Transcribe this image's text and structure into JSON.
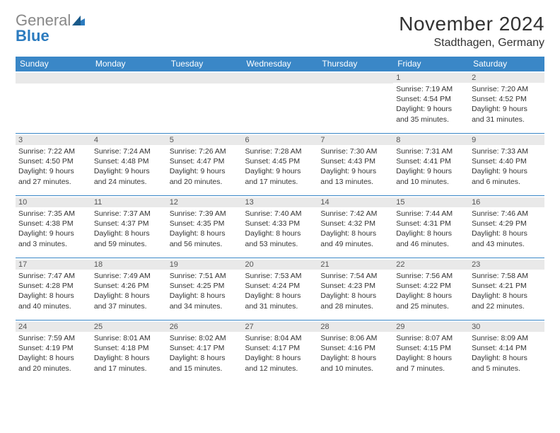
{
  "logo": {
    "gray": "General",
    "blue": "Blue"
  },
  "title": "November 2024",
  "location": "Stadthagen, Germany",
  "colors": {
    "header_bg": "#3a87c7",
    "header_text": "#ffffff",
    "daynum_bg": "#e9e9e9",
    "rule": "#3a87c7",
    "logo_gray": "#888888",
    "logo_blue": "#2b7bbf"
  },
  "day_names": [
    "Sunday",
    "Monday",
    "Tuesday",
    "Wednesday",
    "Thursday",
    "Friday",
    "Saturday"
  ],
  "weeks": [
    [
      null,
      null,
      null,
      null,
      null,
      {
        "n": "1",
        "sunrise": "Sunrise: 7:19 AM",
        "sunset": "Sunset: 4:54 PM",
        "daylight": "Daylight: 9 hours and 35 minutes."
      },
      {
        "n": "2",
        "sunrise": "Sunrise: 7:20 AM",
        "sunset": "Sunset: 4:52 PM",
        "daylight": "Daylight: 9 hours and 31 minutes."
      }
    ],
    [
      {
        "n": "3",
        "sunrise": "Sunrise: 7:22 AM",
        "sunset": "Sunset: 4:50 PM",
        "daylight": "Daylight: 9 hours and 27 minutes."
      },
      {
        "n": "4",
        "sunrise": "Sunrise: 7:24 AM",
        "sunset": "Sunset: 4:48 PM",
        "daylight": "Daylight: 9 hours and 24 minutes."
      },
      {
        "n": "5",
        "sunrise": "Sunrise: 7:26 AM",
        "sunset": "Sunset: 4:47 PM",
        "daylight": "Daylight: 9 hours and 20 minutes."
      },
      {
        "n": "6",
        "sunrise": "Sunrise: 7:28 AM",
        "sunset": "Sunset: 4:45 PM",
        "daylight": "Daylight: 9 hours and 17 minutes."
      },
      {
        "n": "7",
        "sunrise": "Sunrise: 7:30 AM",
        "sunset": "Sunset: 4:43 PM",
        "daylight": "Daylight: 9 hours and 13 minutes."
      },
      {
        "n": "8",
        "sunrise": "Sunrise: 7:31 AM",
        "sunset": "Sunset: 4:41 PM",
        "daylight": "Daylight: 9 hours and 10 minutes."
      },
      {
        "n": "9",
        "sunrise": "Sunrise: 7:33 AM",
        "sunset": "Sunset: 4:40 PM",
        "daylight": "Daylight: 9 hours and 6 minutes."
      }
    ],
    [
      {
        "n": "10",
        "sunrise": "Sunrise: 7:35 AM",
        "sunset": "Sunset: 4:38 PM",
        "daylight": "Daylight: 9 hours and 3 minutes."
      },
      {
        "n": "11",
        "sunrise": "Sunrise: 7:37 AM",
        "sunset": "Sunset: 4:37 PM",
        "daylight": "Daylight: 8 hours and 59 minutes."
      },
      {
        "n": "12",
        "sunrise": "Sunrise: 7:39 AM",
        "sunset": "Sunset: 4:35 PM",
        "daylight": "Daylight: 8 hours and 56 minutes."
      },
      {
        "n": "13",
        "sunrise": "Sunrise: 7:40 AM",
        "sunset": "Sunset: 4:33 PM",
        "daylight": "Daylight: 8 hours and 53 minutes."
      },
      {
        "n": "14",
        "sunrise": "Sunrise: 7:42 AM",
        "sunset": "Sunset: 4:32 PM",
        "daylight": "Daylight: 8 hours and 49 minutes."
      },
      {
        "n": "15",
        "sunrise": "Sunrise: 7:44 AM",
        "sunset": "Sunset: 4:31 PM",
        "daylight": "Daylight: 8 hours and 46 minutes."
      },
      {
        "n": "16",
        "sunrise": "Sunrise: 7:46 AM",
        "sunset": "Sunset: 4:29 PM",
        "daylight": "Daylight: 8 hours and 43 minutes."
      }
    ],
    [
      {
        "n": "17",
        "sunrise": "Sunrise: 7:47 AM",
        "sunset": "Sunset: 4:28 PM",
        "daylight": "Daylight: 8 hours and 40 minutes."
      },
      {
        "n": "18",
        "sunrise": "Sunrise: 7:49 AM",
        "sunset": "Sunset: 4:26 PM",
        "daylight": "Daylight: 8 hours and 37 minutes."
      },
      {
        "n": "19",
        "sunrise": "Sunrise: 7:51 AM",
        "sunset": "Sunset: 4:25 PM",
        "daylight": "Daylight: 8 hours and 34 minutes."
      },
      {
        "n": "20",
        "sunrise": "Sunrise: 7:53 AM",
        "sunset": "Sunset: 4:24 PM",
        "daylight": "Daylight: 8 hours and 31 minutes."
      },
      {
        "n": "21",
        "sunrise": "Sunrise: 7:54 AM",
        "sunset": "Sunset: 4:23 PM",
        "daylight": "Daylight: 8 hours and 28 minutes."
      },
      {
        "n": "22",
        "sunrise": "Sunrise: 7:56 AM",
        "sunset": "Sunset: 4:22 PM",
        "daylight": "Daylight: 8 hours and 25 minutes."
      },
      {
        "n": "23",
        "sunrise": "Sunrise: 7:58 AM",
        "sunset": "Sunset: 4:21 PM",
        "daylight": "Daylight: 8 hours and 22 minutes."
      }
    ],
    [
      {
        "n": "24",
        "sunrise": "Sunrise: 7:59 AM",
        "sunset": "Sunset: 4:19 PM",
        "daylight": "Daylight: 8 hours and 20 minutes."
      },
      {
        "n": "25",
        "sunrise": "Sunrise: 8:01 AM",
        "sunset": "Sunset: 4:18 PM",
        "daylight": "Daylight: 8 hours and 17 minutes."
      },
      {
        "n": "26",
        "sunrise": "Sunrise: 8:02 AM",
        "sunset": "Sunset: 4:17 PM",
        "daylight": "Daylight: 8 hours and 15 minutes."
      },
      {
        "n": "27",
        "sunrise": "Sunrise: 8:04 AM",
        "sunset": "Sunset: 4:17 PM",
        "daylight": "Daylight: 8 hours and 12 minutes."
      },
      {
        "n": "28",
        "sunrise": "Sunrise: 8:06 AM",
        "sunset": "Sunset: 4:16 PM",
        "daylight": "Daylight: 8 hours and 10 minutes."
      },
      {
        "n": "29",
        "sunrise": "Sunrise: 8:07 AM",
        "sunset": "Sunset: 4:15 PM",
        "daylight": "Daylight: 8 hours and 7 minutes."
      },
      {
        "n": "30",
        "sunrise": "Sunrise: 8:09 AM",
        "sunset": "Sunset: 4:14 PM",
        "daylight": "Daylight: 8 hours and 5 minutes."
      }
    ]
  ]
}
